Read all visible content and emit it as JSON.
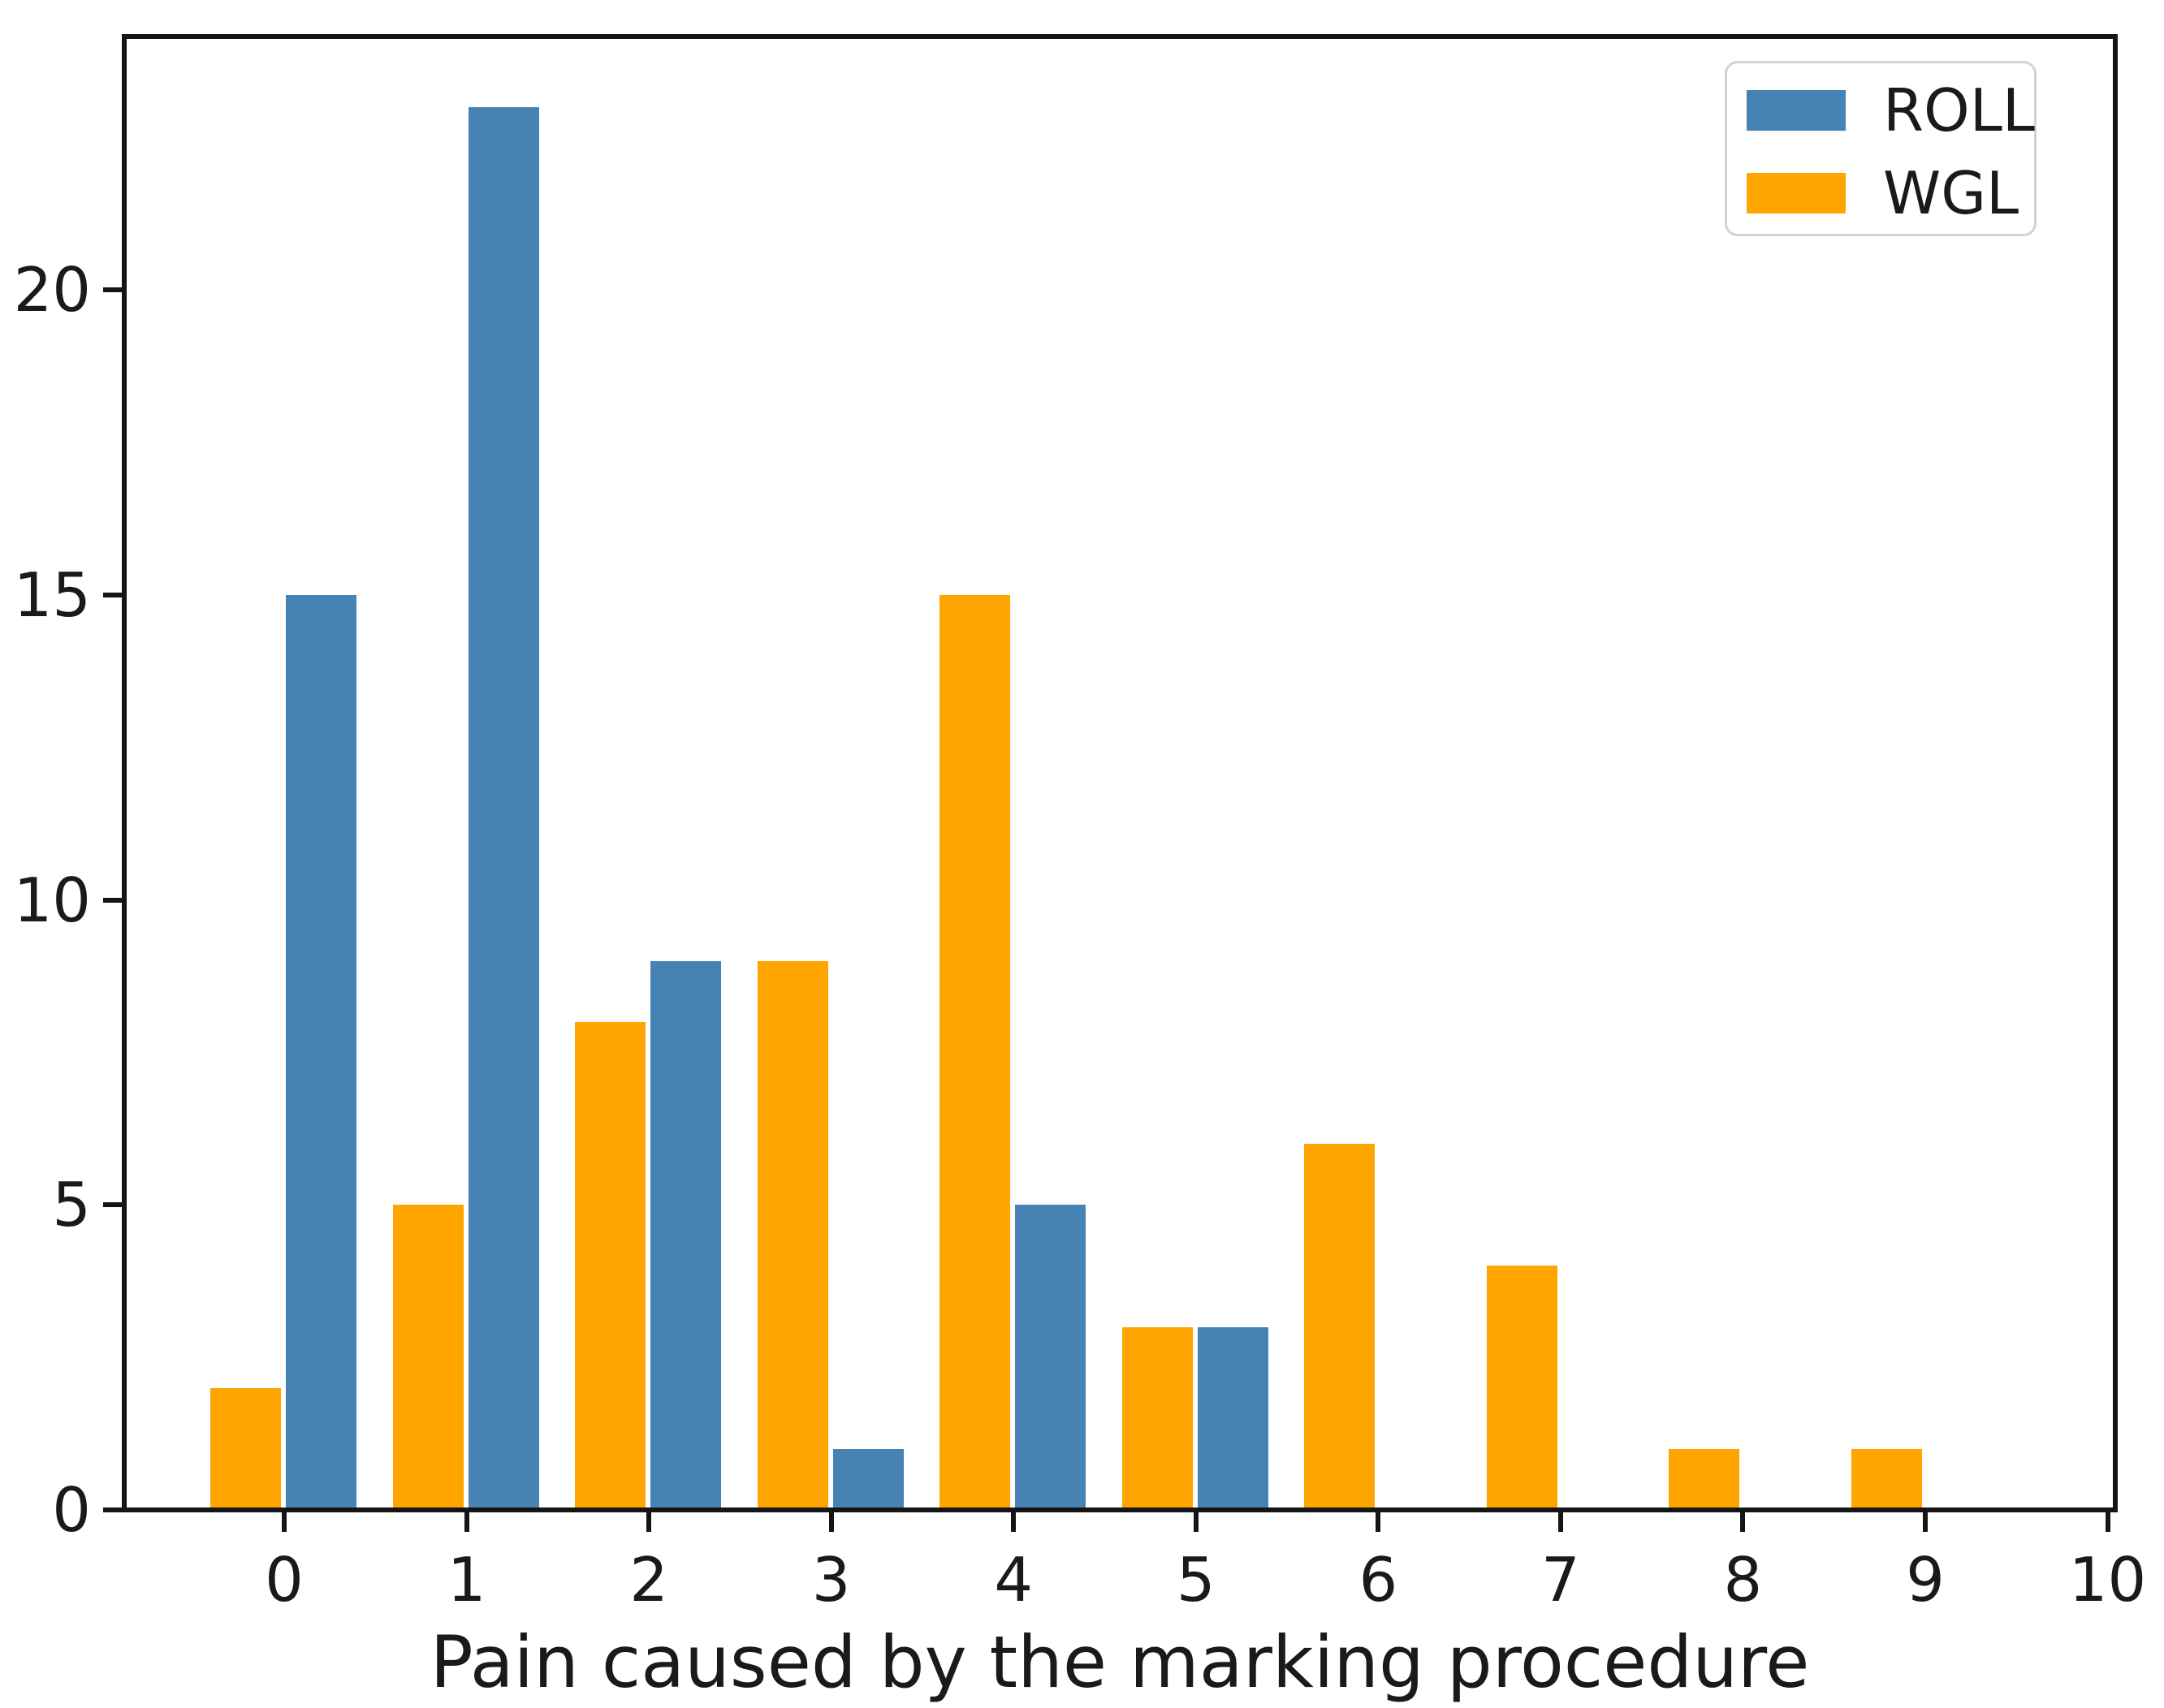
{
  "figure": {
    "background": "#ffffff",
    "text_color": "#1a1a1a"
  },
  "xlabel": "Pain caused by the marking procedure",
  "legend": {
    "position": "upper right",
    "items": [
      {
        "label": "ROLL",
        "color": "#4682B4"
      },
      {
        "label": "WGL",
        "color": "#FFA500"
      }
    ]
  },
  "chart_data": {
    "type": "bar",
    "subtype": "grouped-histogram",
    "title": "",
    "xlabel": "Pain caused by the marking procedure",
    "ylabel": "",
    "categories": [
      0,
      1,
      2,
      3,
      4,
      5,
      6,
      7,
      8,
      9
    ],
    "series": [
      {
        "name": "ROLL",
        "color": "#4682B4",
        "values": [
          15,
          23,
          9,
          1,
          5,
          3,
          0,
          0,
          0,
          0
        ]
      },
      {
        "name": "WGL",
        "color": "#FFA500",
        "values": [
          2,
          5,
          8,
          9,
          15,
          3,
          6,
          4,
          1,
          1
        ]
      }
    ],
    "group_order_left_to_right": [
      "WGL",
      "ROLL"
    ],
    "x_ticks": [
      0,
      1,
      2,
      3,
      4,
      5,
      6,
      7,
      8,
      9,
      10
    ],
    "y_ticks": [
      0,
      5,
      10,
      15,
      20
    ],
    "xlim": [
      -0.88,
      10.04
    ],
    "ylim": [
      0,
      24.2
    ],
    "grid": false,
    "legend_position": "upper right"
  }
}
